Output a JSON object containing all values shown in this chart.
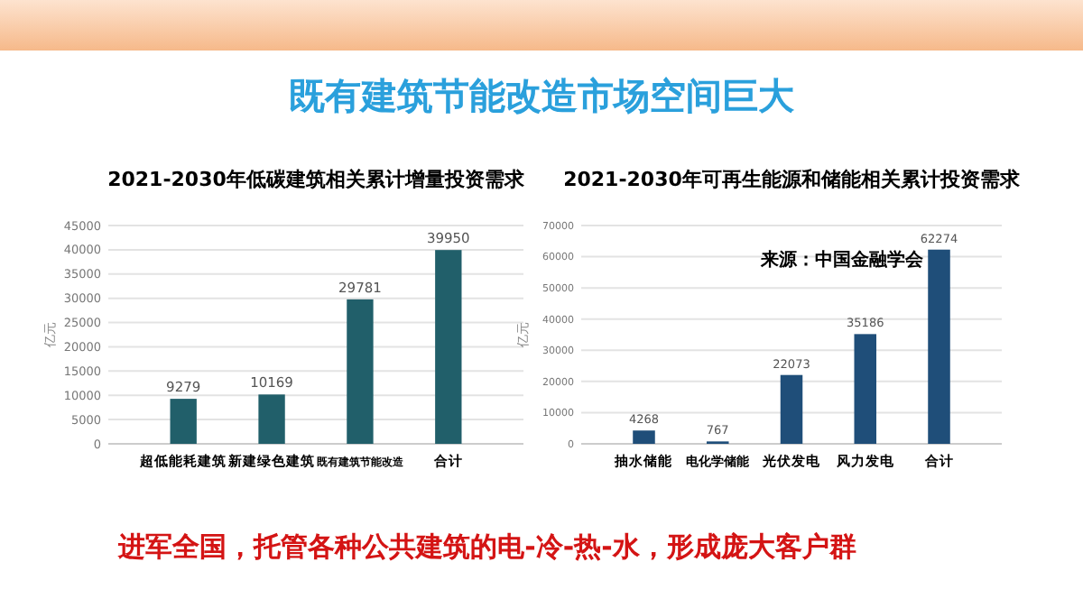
{
  "chart_data": [
    {
      "type": "other",
      "title": "既有建筑节能改造市场空间巨大",
      "annotations": [
        "进军全国，托管各种公共建筑的电-冷-热-水，形成庞大客户群"
      ]
    },
    {
      "type": "bar",
      "title": "2021-2030年低碳建筑相关累计增量投资需求",
      "ylabel": "亿元",
      "categories": [
        "超低能耗建筑",
        "新建绿色建筑",
        "既有建筑节能改造",
        "合计"
      ],
      "values": [
        9279,
        10169,
        29781,
        39950
      ],
      "color": "#215f6a",
      "ylim": [
        0,
        45000
      ],
      "yticks": [
        0,
        5000,
        10000,
        15000,
        20000,
        25000,
        30000,
        35000,
        40000,
        45000
      ],
      "grid": "y",
      "data_labels": true
    },
    {
      "type": "bar",
      "title": "2021-2030年可再生能源和储能相关累计投资需求",
      "ylabel": "亿元",
      "categories": [
        "抽水储能",
        "电化学储能",
        "光伏发电",
        "风力发电",
        "合计"
      ],
      "values": [
        4268,
        767,
        22073,
        35186,
        62274
      ],
      "color": "#1f4e79",
      "ylim": [
        0,
        70000
      ],
      "yticks": [
        0,
        10000,
        20000,
        30000,
        40000,
        50000,
        60000,
        70000
      ],
      "grid": "y",
      "data_labels": true,
      "annotations": [
        "来源：中国金融学会"
      ]
    }
  ]
}
